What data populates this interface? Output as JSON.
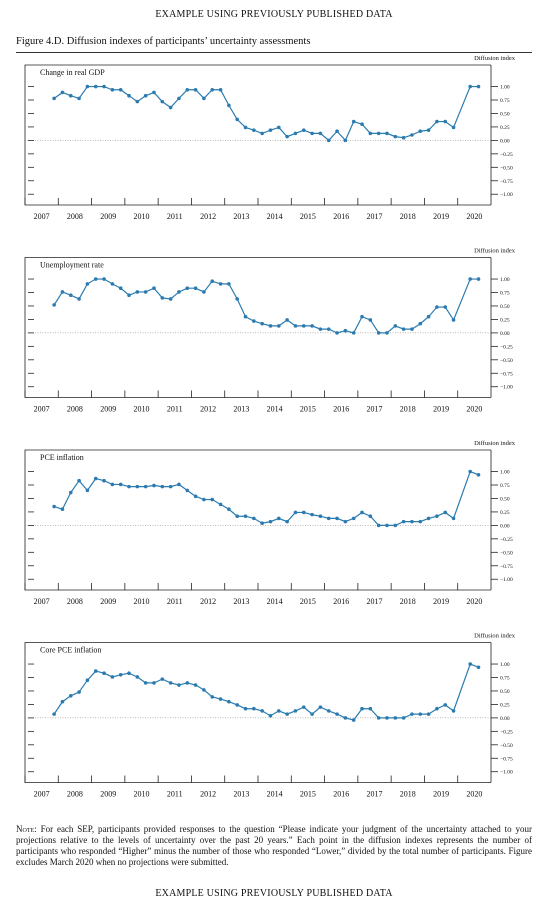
{
  "header": "EXAMPLE USING PREVIOUSLY PUBLISHED DATA",
  "figure_title": "Figure 4.D. Diffusion indexes of participants’ uncertainty assessments",
  "chart_data": [
    {
      "type": "line",
      "title": "Change in real GDP",
      "ylabel": "Diffusion index",
      "color": "#2b7bb0",
      "x": [
        2007.875,
        2008.125,
        2008.375,
        2008.625,
        2008.875,
        2009.125,
        2009.375,
        2009.625,
        2009.875,
        2010.125,
        2010.375,
        2010.625,
        2010.875,
        2011.125,
        2011.375,
        2011.625,
        2011.875,
        2012.125,
        2012.375,
        2012.625,
        2012.875,
        2013.125,
        2013.375,
        2013.625,
        2013.875,
        2014.125,
        2014.375,
        2014.625,
        2014.875,
        2015.125,
        2015.375,
        2015.625,
        2015.875,
        2016.125,
        2016.375,
        2016.625,
        2016.875,
        2017.125,
        2017.375,
        2017.625,
        2017.875,
        2018.125,
        2018.375,
        2018.625,
        2018.875,
        2019.125,
        2019.375,
        2019.625,
        2019.875,
        2020.375,
        2020.625
      ],
      "values": [
        0.78,
        0.89,
        0.83,
        0.78,
        1.0,
        1.0,
        1.0,
        0.94,
        0.94,
        0.83,
        0.72,
        0.83,
        0.89,
        0.72,
        0.61,
        0.78,
        0.94,
        0.94,
        0.78,
        0.94,
        0.94,
        0.65,
        0.39,
        0.24,
        0.19,
        0.13,
        0.19,
        0.24,
        0.07,
        0.13,
        0.19,
        0.13,
        0.13,
        0.0,
        0.17,
        0.0,
        0.35,
        0.3,
        0.13,
        0.13,
        0.13,
        0.07,
        0.05,
        0.1,
        0.17,
        0.19,
        0.35,
        0.35,
        0.24,
        1.0,
        1.0
      ],
      "xlim": [
        2007,
        2021
      ],
      "xticks": [
        2007,
        2008,
        2009,
        2010,
        2011,
        2012,
        2013,
        2014,
        2015,
        2016,
        2017,
        2018,
        2019,
        2020
      ],
      "ylim": [
        -1.2,
        1.4
      ],
      "yticks": [
        {
          "value": 1,
          "label": "1.00"
        },
        {
          "value": 0.75,
          "label": "0.75"
        },
        {
          "value": 0.5,
          "label": "0.50"
        },
        {
          "value": 0.25,
          "label": "0.25"
        },
        {
          "value": 0,
          "label": "0.00"
        },
        {
          "value": -0.25,
          "label": "−0.25"
        },
        {
          "value": -0.5,
          "label": "−0.50"
        },
        {
          "value": -0.75,
          "label": "−0.75"
        },
        {
          "value": -1,
          "label": "−1.00"
        }
      ]
    },
    {
      "type": "line",
      "title": "Unemployment rate",
      "ylabel": "Diffusion index",
      "color": "#2b7bb0",
      "x": [
        2007.875,
        2008.125,
        2008.375,
        2008.625,
        2008.875,
        2009.125,
        2009.375,
        2009.625,
        2009.875,
        2010.125,
        2010.375,
        2010.625,
        2010.875,
        2011.125,
        2011.375,
        2011.625,
        2011.875,
        2012.125,
        2012.375,
        2012.625,
        2012.875,
        2013.125,
        2013.375,
        2013.625,
        2013.875,
        2014.125,
        2014.375,
        2014.625,
        2014.875,
        2015.125,
        2015.375,
        2015.625,
        2015.875,
        2016.125,
        2016.375,
        2016.625,
        2016.875,
        2017.125,
        2017.375,
        2017.625,
        2017.875,
        2018.125,
        2018.375,
        2018.625,
        2018.875,
        2019.125,
        2019.375,
        2019.625,
        2019.875,
        2020.375,
        2020.625
      ],
      "values": [
        0.52,
        0.76,
        0.7,
        0.63,
        0.91,
        1.0,
        1.0,
        0.91,
        0.83,
        0.7,
        0.76,
        0.76,
        0.83,
        0.65,
        0.63,
        0.76,
        0.83,
        0.83,
        0.76,
        0.96,
        0.91,
        0.91,
        0.63,
        0.3,
        0.22,
        0.17,
        0.13,
        0.13,
        0.24,
        0.13,
        0.13,
        0.13,
        0.07,
        0.07,
        0.0,
        0.04,
        0.0,
        0.3,
        0.24,
        0.0,
        0.0,
        0.13,
        0.07,
        0.07,
        0.17,
        0.3,
        0.48,
        0.48,
        0.24,
        1.0,
        1.0
      ],
      "xlim": [
        2007,
        2021
      ],
      "xticks": [
        2007,
        2008,
        2009,
        2010,
        2011,
        2012,
        2013,
        2014,
        2015,
        2016,
        2017,
        2018,
        2019,
        2020
      ],
      "ylim": [
        -1.2,
        1.4
      ],
      "yticks": [
        {
          "value": 1,
          "label": "1.00"
        },
        {
          "value": 0.75,
          "label": "0.75"
        },
        {
          "value": 0.5,
          "label": "0.50"
        },
        {
          "value": 0.25,
          "label": "0.25"
        },
        {
          "value": 0,
          "label": "0.00"
        },
        {
          "value": -0.25,
          "label": "−0.25"
        },
        {
          "value": -0.5,
          "label": "−0.50"
        },
        {
          "value": -0.75,
          "label": "−0.75"
        },
        {
          "value": -1,
          "label": "−1.00"
        }
      ]
    },
    {
      "type": "line",
      "title": "PCE inflation",
      "ylabel": "Diffusion index",
      "color": "#2b7bb0",
      "x": [
        2007.875,
        2008.125,
        2008.375,
        2008.625,
        2008.875,
        2009.125,
        2009.375,
        2009.625,
        2009.875,
        2010.125,
        2010.375,
        2010.625,
        2010.875,
        2011.125,
        2011.375,
        2011.625,
        2011.875,
        2012.125,
        2012.375,
        2012.625,
        2012.875,
        2013.125,
        2013.375,
        2013.625,
        2013.875,
        2014.125,
        2014.375,
        2014.625,
        2014.875,
        2015.125,
        2015.375,
        2015.625,
        2015.875,
        2016.125,
        2016.375,
        2016.625,
        2016.875,
        2017.125,
        2017.375,
        2017.625,
        2017.875,
        2018.125,
        2018.375,
        2018.625,
        2018.875,
        2019.125,
        2019.375,
        2019.625,
        2019.875,
        2020.375,
        2020.625
      ],
      "values": [
        0.35,
        0.3,
        0.61,
        0.83,
        0.65,
        0.87,
        0.83,
        0.76,
        0.76,
        0.72,
        0.72,
        0.72,
        0.74,
        0.72,
        0.72,
        0.76,
        0.65,
        0.54,
        0.48,
        0.48,
        0.39,
        0.3,
        0.17,
        0.17,
        0.13,
        0.04,
        0.07,
        0.13,
        0.07,
        0.24,
        0.24,
        0.2,
        0.17,
        0.13,
        0.13,
        0.07,
        0.13,
        0.24,
        0.17,
        0.0,
        0.0,
        0.0,
        0.07,
        0.07,
        0.07,
        0.13,
        0.17,
        0.24,
        0.13,
        1.0,
        0.94
      ],
      "xlim": [
        2007,
        2021
      ],
      "xticks": [
        2007,
        2008,
        2009,
        2010,
        2011,
        2012,
        2013,
        2014,
        2015,
        2016,
        2017,
        2018,
        2019,
        2020
      ],
      "ylim": [
        -1.2,
        1.4
      ],
      "yticks": [
        {
          "value": 1,
          "label": "1.00"
        },
        {
          "value": 0.75,
          "label": "0.75"
        },
        {
          "value": 0.5,
          "label": "0.50"
        },
        {
          "value": 0.25,
          "label": "0.25"
        },
        {
          "value": 0,
          "label": "0.00"
        },
        {
          "value": -0.25,
          "label": "−0.25"
        },
        {
          "value": -0.5,
          "label": "−0.50"
        },
        {
          "value": -0.75,
          "label": "−0.75"
        },
        {
          "value": -1,
          "label": "−1.00"
        }
      ]
    },
    {
      "type": "line",
      "title": "Core PCE inflation",
      "ylabel": "Diffusion index",
      "color": "#2b7bb0",
      "x": [
        2007.875,
        2008.125,
        2008.375,
        2008.625,
        2008.875,
        2009.125,
        2009.375,
        2009.625,
        2009.875,
        2010.125,
        2010.375,
        2010.625,
        2010.875,
        2011.125,
        2011.375,
        2011.625,
        2011.875,
        2012.125,
        2012.375,
        2012.625,
        2012.875,
        2013.125,
        2013.375,
        2013.625,
        2013.875,
        2014.125,
        2014.375,
        2014.625,
        2014.875,
        2015.125,
        2015.375,
        2015.625,
        2015.875,
        2016.125,
        2016.375,
        2016.625,
        2016.875,
        2017.125,
        2017.375,
        2017.625,
        2017.875,
        2018.125,
        2018.375,
        2018.625,
        2018.875,
        2019.125,
        2019.375,
        2019.625,
        2019.875,
        2020.375,
        2020.625
      ],
      "values": [
        0.07,
        0.3,
        0.41,
        0.48,
        0.7,
        0.87,
        0.83,
        0.76,
        0.8,
        0.83,
        0.76,
        0.65,
        0.65,
        0.72,
        0.65,
        0.61,
        0.65,
        0.61,
        0.52,
        0.39,
        0.35,
        0.3,
        0.24,
        0.17,
        0.17,
        0.13,
        0.04,
        0.13,
        0.07,
        0.13,
        0.2,
        0.07,
        0.2,
        0.13,
        0.07,
        0.0,
        -0.04,
        0.17,
        0.17,
        0.0,
        0.0,
        0.0,
        0.0,
        0.07,
        0.07,
        0.07,
        0.17,
        0.24,
        0.13,
        1.0,
        0.94
      ],
      "xlim": [
        2007,
        2021
      ],
      "xticks": [
        2007,
        2008,
        2009,
        2010,
        2011,
        2012,
        2013,
        2014,
        2015,
        2016,
        2017,
        2018,
        2019,
        2020
      ],
      "ylim": [
        -1.2,
        1.4
      ],
      "yticks": [
        {
          "value": 1,
          "label": "1.00"
        },
        {
          "value": 0.75,
          "label": "0.75"
        },
        {
          "value": 0.5,
          "label": "0.50"
        },
        {
          "value": 0.25,
          "label": "0.25"
        },
        {
          "value": 0,
          "label": "0.00"
        },
        {
          "value": -0.25,
          "label": "−0.25"
        },
        {
          "value": -0.5,
          "label": "−0.50"
        },
        {
          "value": -0.75,
          "label": "−0.75"
        },
        {
          "value": -1,
          "label": "−1.00"
        }
      ]
    }
  ],
  "note_label": "Note:",
  "note": "For each SEP, participants provided responses to the question “Please indicate your judgment of the uncertainty attached to your projections relative to the levels of uncertainty over the past 20 years.” Each point in the diffusion indexes represents the number of participants who responded “Higher” minus the number of those who responded “Lower,” divided by the total number of participants. Figure excludes March 2020 when no projections were submitted.",
  "footer": "EXAMPLE USING PREVIOUSLY PUBLISHED DATA"
}
